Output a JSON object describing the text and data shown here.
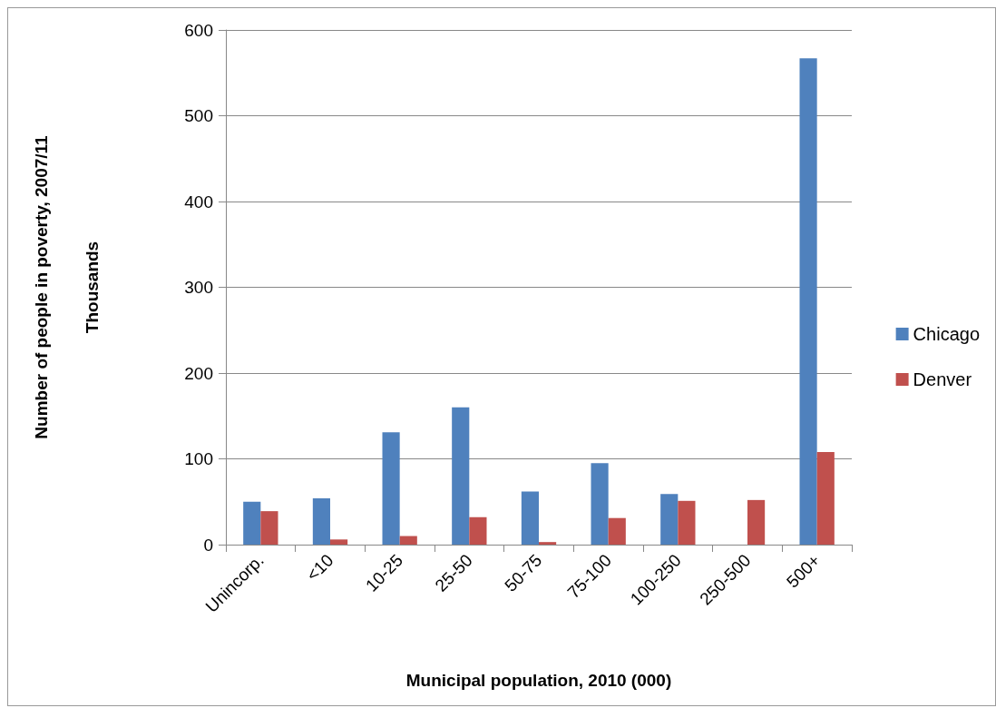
{
  "chart_data": {
    "type": "bar",
    "xlabel": "Municipal population, 2010 (000)",
    "ylabel": "Number of people in poverty, 2007/11\nThousands",
    "categories": [
      "Unincorp.",
      "<10",
      "10-25",
      "25-50",
      "50-75",
      "75-100",
      "100-250",
      "250-500",
      "500+"
    ],
    "series": [
      {
        "name": "Chicago",
        "color": "#4f81bd",
        "values": [
          50,
          54,
          131,
          160,
          62,
          95,
          59,
          0,
          567
        ]
      },
      {
        "name": "Denver",
        "color": "#c0504d",
        "values": [
          39,
          6,
          10,
          32,
          3,
          31,
          51,
          52,
          108
        ]
      }
    ],
    "ylim": [
      0,
      600
    ],
    "yticks": [
      0,
      100,
      200,
      300,
      400,
      500,
      600
    ],
    "grid": "y",
    "legend": "right"
  }
}
